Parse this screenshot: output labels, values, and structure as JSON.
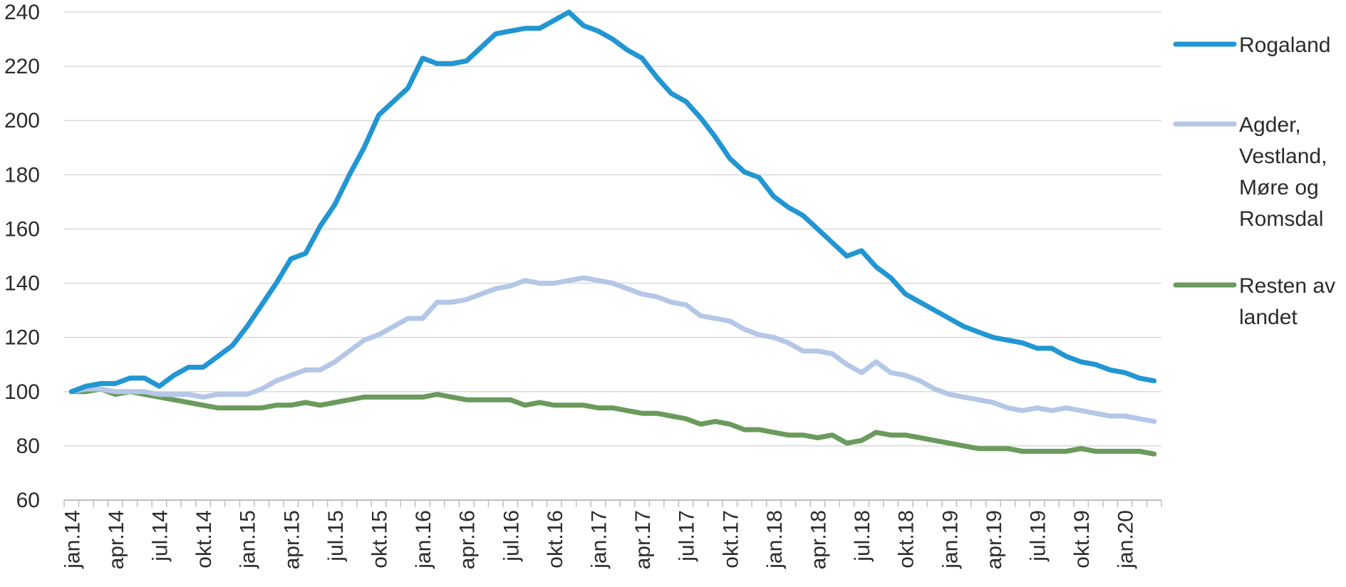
{
  "chart_data": {
    "type": "line",
    "title": "",
    "xlabel": "",
    "ylabel": "",
    "ylim": [
      60,
      240
    ],
    "yticks": [
      60,
      80,
      100,
      120,
      140,
      160,
      180,
      200,
      220,
      240
    ],
    "grid": true,
    "legend_position": "right",
    "x_tick_labels": [
      "jan.14",
      "apr.14",
      "jul.14",
      "okt.14",
      "jan.15",
      "apr.15",
      "jul.15",
      "okt.15",
      "jan.16",
      "apr.16",
      "jul.16",
      "okt.16",
      "jan.17",
      "apr.17",
      "jul.17",
      "okt.17",
      "jan.18",
      "apr.18",
      "jul.18",
      "okt.18",
      "jan.19",
      "apr.19",
      "jul.19",
      "okt.19",
      "jan.20"
    ],
    "n_points": 75,
    "series": [
      {
        "name": "Rogaland",
        "legend_lines": [
          "Rogaland"
        ],
        "color": "#2196d3",
        "values": [
          100,
          102,
          103,
          103,
          105,
          105,
          102,
          106,
          109,
          109,
          113,
          117,
          124,
          132,
          140,
          149,
          151,
          161,
          169,
          180,
          190,
          202,
          207,
          212,
          223,
          221,
          221,
          222,
          227,
          232,
          233,
          234,
          234,
          237,
          240,
          235,
          233,
          230,
          226,
          223,
          216,
          210,
          207,
          201,
          194,
          186,
          181,
          179,
          172,
          168,
          165,
          160,
          155,
          150,
          152,
          146,
          142,
          136,
          133,
          130,
          127,
          124,
          122,
          120,
          119,
          118,
          116,
          116,
          113,
          111,
          110,
          108,
          107,
          105,
          104
        ]
      },
      {
        "name": "Agder, Vestland, Møre og Romsdal",
        "legend_lines": [
          "Agder,",
          "Vestland,",
          "Møre og",
          "Romsdal"
        ],
        "color": "#b4c7e7",
        "values": [
          100,
          101,
          101,
          100,
          100,
          100,
          99,
          99,
          99,
          98,
          99,
          99,
          99,
          101,
          104,
          106,
          108,
          108,
          111,
          115,
          119,
          121,
          124,
          127,
          127,
          133,
          133,
          134,
          136,
          138,
          139,
          141,
          140,
          140,
          141,
          142,
          141,
          140,
          138,
          136,
          135,
          133,
          132,
          128,
          127,
          126,
          123,
          121,
          120,
          118,
          115,
          115,
          114,
          110,
          107,
          111,
          107,
          106,
          104,
          101,
          99,
          98,
          97,
          96,
          94,
          93,
          94,
          93,
          94,
          93,
          92,
          91,
          91,
          90,
          89
        ]
      },
      {
        "name": "Resten av landet",
        "legend_lines": [
          "Resten av",
          "landet"
        ],
        "color": "#6a9a5c",
        "values": [
          100,
          100,
          101,
          99,
          100,
          99,
          98,
          97,
          96,
          95,
          94,
          94,
          94,
          94,
          95,
          95,
          96,
          95,
          96,
          97,
          98,
          98,
          98,
          98,
          98,
          99,
          98,
          97,
          97,
          97,
          97,
          95,
          96,
          95,
          95,
          95,
          94,
          94,
          93,
          92,
          92,
          91,
          90,
          88,
          89,
          88,
          86,
          86,
          85,
          84,
          84,
          83,
          84,
          81,
          82,
          85,
          84,
          84,
          83,
          82,
          81,
          80,
          79,
          79,
          79,
          78,
          78,
          78,
          78,
          79,
          78,
          78,
          78,
          78,
          77
        ]
      }
    ]
  }
}
